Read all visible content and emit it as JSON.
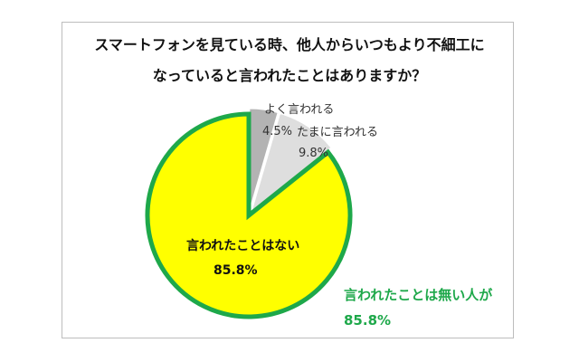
{
  "chart_data": {
    "type": "pie",
    "title": "スマートフォンを見ている時、他人からいつもより不細工になっていると言われたことはありますか？",
    "title_lines": [
      "スマートフォンを見ている時、他人からいつもより不細工に",
      "なっていると言われたことはありますか？"
    ],
    "slices": [
      {
        "label": "よく言われる",
        "value": 4.5,
        "value_label": "4.5%",
        "color": "#b3b3b3"
      },
      {
        "label": "たまに言われる",
        "value": 9.8,
        "value_label": "9.8%",
        "color": "#dedede"
      },
      {
        "label": "言われたことはない",
        "value": 85.8,
        "value_label": "85.8%",
        "color": "#ffff00"
      }
    ],
    "exploded_slice": "言われたことはない",
    "exploded_outline_color": "#1ea84a",
    "annotation": {
      "text": "言われたことは無い人が",
      "value": "85.8%",
      "color": "#1ea84a"
    },
    "legend": "none"
  }
}
